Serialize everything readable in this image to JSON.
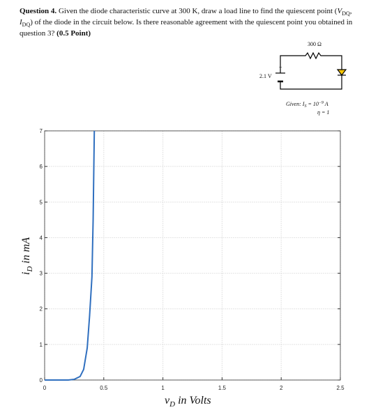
{
  "question": {
    "label": "Question 4.",
    "text_before": "Given the diode characteristic curve at 300 K, draw a load line to find the quiescent point (",
    "v_symbol": "V",
    "v_sub": "DQ",
    "separator": ", ",
    "i_symbol": "I",
    "i_sub": "DQ",
    "text_after": ") of the diode in the circuit below. Is there reasonable agreement with the quiescent point you obtained in question 3?",
    "points": "(0.5 Point)"
  },
  "circuit": {
    "resistor": "300 Ω",
    "source": "2.1 V",
    "polarity": "+",
    "given_prefix": "Given: ",
    "is_symbol": "I",
    "is_sub": "S",
    "is_eq": " = 10",
    "is_exp": "−9",
    "is_unit": " A",
    "eta": "η = 1"
  },
  "chart_data": {
    "type": "line",
    "x_label": {
      "symbol": "v",
      "subscript": "D",
      "text": " in Volts"
    },
    "y_label": {
      "symbol": "i",
      "subscript": "D",
      "text": " in mA"
    },
    "x": [
      0,
      0.2,
      0.25,
      0.3,
      0.33,
      0.36,
      0.38,
      0.4,
      0.41,
      0.42
    ],
    "values": [
      0,
      0,
      0.02,
      0.1,
      0.3,
      0.9,
      1.8,
      2.9,
      4.5,
      7
    ],
    "color": "#2f6fbf",
    "xlim": [
      0,
      2.5
    ],
    "xticks": [
      0,
      0.5,
      1,
      1.5,
      2,
      2.5
    ],
    "ylim": [
      0,
      7
    ],
    "yticks": [
      0,
      1,
      2,
      3,
      4,
      5,
      6,
      7
    ],
    "grid": true
  }
}
